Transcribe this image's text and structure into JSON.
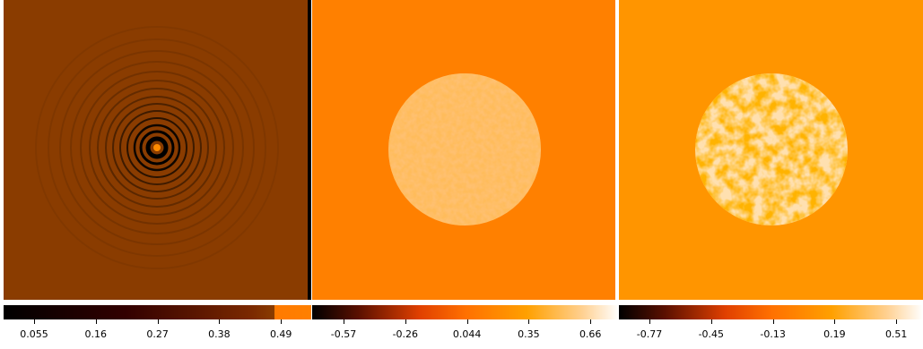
{
  "colorbars": [
    {
      "ticks": [
        "0.055",
        "0.16",
        "0.27",
        "0.38",
        "0.49"
      ]
    },
    {
      "ticks": [
        "-0.57",
        "-0.26",
        "0.044",
        "0.35",
        "0.66"
      ]
    },
    {
      "ticks": [
        "-0.77",
        "-0.45",
        "-0.13",
        "0.19",
        "0.51"
      ]
    }
  ]
}
